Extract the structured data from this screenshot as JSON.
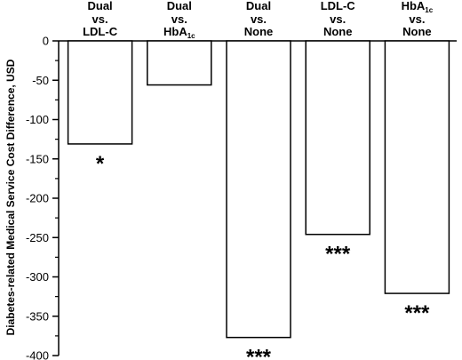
{
  "chart_data": {
    "type": "bar",
    "ylabel": "Diabetes-related Medical Service Cost Difference, USD",
    "xlabel": "",
    "ylim": [
      -400,
      0
    ],
    "yticks": [
      0,
      -50,
      -100,
      -150,
      -200,
      -250,
      -300,
      -350,
      -400
    ],
    "grid": false,
    "categories": [
      {
        "line1": "Dual",
        "line2": "vs.",
        "line3": "LDL-C"
      },
      {
        "line1": "Dual",
        "line2": "vs.",
        "line3": "HbA",
        "sub": "1c"
      },
      {
        "line1": "Dual",
        "line2": "vs.",
        "line3": "None"
      },
      {
        "line1": "LDL-C",
        "line2": "vs.",
        "line3": "None"
      },
      {
        "line1": "HbA",
        "sub": "1c",
        "line2": "vs.",
        "line3": "None"
      }
    ],
    "values": [
      -131,
      -56,
      -377,
      -246,
      -321
    ],
    "significance": [
      "*",
      "",
      "***",
      "***",
      "***"
    ]
  }
}
